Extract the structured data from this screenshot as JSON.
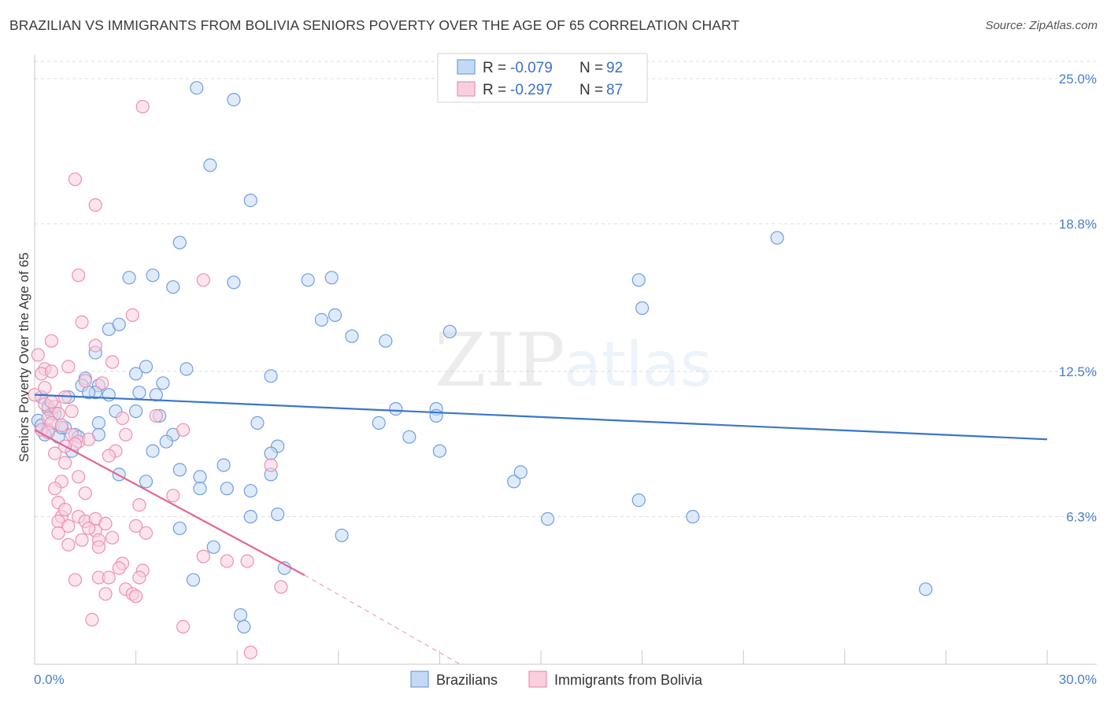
{
  "header": {
    "title": "BRAZILIAN VS IMMIGRANTS FROM BOLIVIA SENIORS POVERTY OVER THE AGE OF 65 CORRELATION CHART",
    "source": "Source: ZipAtlas.com"
  },
  "watermark": {
    "zip": "ZIP",
    "atlas": "atlas"
  },
  "chart_data": {
    "type": "scatter",
    "ylabel": "Seniors Poverty Over the Age of 65",
    "xlim": [
      0,
      30
    ],
    "ylim": [
      0,
      26
    ],
    "x_tick_labels": [
      "0.0%",
      "30.0%"
    ],
    "y_ticks": [
      {
        "value": 25.0,
        "label": "25.0%"
      },
      {
        "value": 18.8,
        "label": "18.8%"
      },
      {
        "value": 12.5,
        "label": "12.5%"
      },
      {
        "value": 6.3,
        "label": "6.3%"
      }
    ],
    "grid": true,
    "legend": {
      "placement": "top-center",
      "rows": [
        {
          "r_label": "R =",
          "r_value": "-0.079",
          "n_label": "N =",
          "n_value": "92"
        },
        {
          "r_label": "R =",
          "r_value": "-0.297",
          "n_label": "N =",
          "n_value": "87"
        }
      ]
    },
    "series": [
      {
        "name": "Brazilians",
        "color": "#6e9fe0",
        "fill": "#c5d9f5",
        "line_color": "#3a75cc",
        "trend": {
          "x": [
            0,
            30
          ],
          "y": [
            11.5,
            9.6
          ]
        },
        "points": [
          [
            4.8,
            24.6
          ],
          [
            5.9,
            24.1
          ],
          [
            5.2,
            21.3
          ],
          [
            6.4,
            19.8
          ],
          [
            4.3,
            18.0
          ],
          [
            22.0,
            18.2
          ],
          [
            3.5,
            16.6
          ],
          [
            2.8,
            16.5
          ],
          [
            4.1,
            16.1
          ],
          [
            5.9,
            16.3
          ],
          [
            8.1,
            16.4
          ],
          [
            8.8,
            16.5
          ],
          [
            17.9,
            16.4
          ],
          [
            18.0,
            15.2
          ],
          [
            8.5,
            14.7
          ],
          [
            8.9,
            14.9
          ],
          [
            2.2,
            14.3
          ],
          [
            2.5,
            14.5
          ],
          [
            9.4,
            14.0
          ],
          [
            10.4,
            13.8
          ],
          [
            12.3,
            14.2
          ],
          [
            1.8,
            13.3
          ],
          [
            3.3,
            12.7
          ],
          [
            3.0,
            12.4
          ],
          [
            4.5,
            12.6
          ],
          [
            7.0,
            12.3
          ],
          [
            1.5,
            12.2
          ],
          [
            1.4,
            11.9
          ],
          [
            1.9,
            11.9
          ],
          [
            1.8,
            11.6
          ],
          [
            2.2,
            11.5
          ],
          [
            3.1,
            11.6
          ],
          [
            3.8,
            12.0
          ],
          [
            3.6,
            11.5
          ],
          [
            1.0,
            11.4
          ],
          [
            0.2,
            11.4
          ],
          [
            0.4,
            11.0
          ],
          [
            0.5,
            10.7
          ],
          [
            0.6,
            10.7
          ],
          [
            2.4,
            10.8
          ],
          [
            3.0,
            10.8
          ],
          [
            3.7,
            10.6
          ],
          [
            10.7,
            10.9
          ],
          [
            11.9,
            10.9
          ],
          [
            11.9,
            10.6
          ],
          [
            10.2,
            10.3
          ],
          [
            1.9,
            10.3
          ],
          [
            0.1,
            10.4
          ],
          [
            0.2,
            10.2
          ],
          [
            0.4,
            10.0
          ],
          [
            0.9,
            10.1
          ],
          [
            1.2,
            9.8
          ],
          [
            0.7,
            9.7
          ],
          [
            1.3,
            9.7
          ],
          [
            1.9,
            9.8
          ],
          [
            0.3,
            9.8
          ],
          [
            4.1,
            9.8
          ],
          [
            6.6,
            10.3
          ],
          [
            11.1,
            9.7
          ],
          [
            3.9,
            9.5
          ],
          [
            7.2,
            9.3
          ],
          [
            1.1,
            9.1
          ],
          [
            3.5,
            9.1
          ],
          [
            7.0,
            9.0
          ],
          [
            12.0,
            9.1
          ],
          [
            5.6,
            8.5
          ],
          [
            4.3,
            8.3
          ],
          [
            2.5,
            8.1
          ],
          [
            4.9,
            8.0
          ],
          [
            7.0,
            8.1
          ],
          [
            3.3,
            7.8
          ],
          [
            14.2,
            7.8
          ],
          [
            14.4,
            8.2
          ],
          [
            4.9,
            7.5
          ],
          [
            5.7,
            7.5
          ],
          [
            6.4,
            7.4
          ],
          [
            17.9,
            7.0
          ],
          [
            6.4,
            6.3
          ],
          [
            7.2,
            6.4
          ],
          [
            15.2,
            6.2
          ],
          [
            19.5,
            6.3
          ],
          [
            4.3,
            5.8
          ],
          [
            9.1,
            5.5
          ],
          [
            5.3,
            5.0
          ],
          [
            7.4,
            4.1
          ],
          [
            4.7,
            3.6
          ],
          [
            6.1,
            2.1
          ],
          [
            6.2,
            1.6
          ],
          [
            26.4,
            3.2
          ],
          [
            0.4,
            10.9
          ],
          [
            1.6,
            11.6
          ],
          [
            0.8,
            10.1
          ]
        ]
      },
      {
        "name": "Immigrants from Bolivia",
        "color": "#ee8fb0",
        "fill": "#f9cfde",
        "line_color": "#e46592",
        "trend": {
          "x": [
            0,
            8
          ],
          "y": [
            10.0,
            3.8
          ]
        },
        "trend_dashed": {
          "x": [
            8,
            12.6
          ],
          "y": [
            3.8,
            0.0
          ]
        },
        "points": [
          [
            3.2,
            23.8
          ],
          [
            1.2,
            20.7
          ],
          [
            1.8,
            19.6
          ],
          [
            1.3,
            16.6
          ],
          [
            5.0,
            16.4
          ],
          [
            2.9,
            14.9
          ],
          [
            1.4,
            14.6
          ],
          [
            0.5,
            13.8
          ],
          [
            0.1,
            13.2
          ],
          [
            1.8,
            13.6
          ],
          [
            2.3,
            12.9
          ],
          [
            1.0,
            12.7
          ],
          [
            0.3,
            12.6
          ],
          [
            0.2,
            12.4
          ],
          [
            0.5,
            12.5
          ],
          [
            1.5,
            12.1
          ],
          [
            2.0,
            12.0
          ],
          [
            0.0,
            11.5
          ],
          [
            0.9,
            11.4
          ],
          [
            0.3,
            11.1
          ],
          [
            0.6,
            11.0
          ],
          [
            0.7,
            10.7
          ],
          [
            0.4,
            10.5
          ],
          [
            2.6,
            10.5
          ],
          [
            3.6,
            10.6
          ],
          [
            0.2,
            10.0
          ],
          [
            0.5,
            10.3
          ],
          [
            0.8,
            10.2
          ],
          [
            4.4,
            10.0
          ],
          [
            1.1,
            9.8
          ],
          [
            2.7,
            9.8
          ],
          [
            1.3,
            9.5
          ],
          [
            1.2,
            9.4
          ],
          [
            0.9,
            9.3
          ],
          [
            2.4,
            9.1
          ],
          [
            7.0,
            8.5
          ],
          [
            0.6,
            9.0
          ],
          [
            0.9,
            8.6
          ],
          [
            1.3,
            8.0
          ],
          [
            0.8,
            7.8
          ],
          [
            0.6,
            7.5
          ],
          [
            1.5,
            7.3
          ],
          [
            4.1,
            7.2
          ],
          [
            0.7,
            6.9
          ],
          [
            3.1,
            6.8
          ],
          [
            0.8,
            6.3
          ],
          [
            0.7,
            6.1
          ],
          [
            1.3,
            6.3
          ],
          [
            1.5,
            6.1
          ],
          [
            1.8,
            6.2
          ],
          [
            2.1,
            6.0
          ],
          [
            3.0,
            5.9
          ],
          [
            1.0,
            5.9
          ],
          [
            1.8,
            5.7
          ],
          [
            3.3,
            5.6
          ],
          [
            0.7,
            5.6
          ],
          [
            1.4,
            5.3
          ],
          [
            1.9,
            5.3
          ],
          [
            1.0,
            5.1
          ],
          [
            1.9,
            5.0
          ],
          [
            5.0,
            4.6
          ],
          [
            5.7,
            4.4
          ],
          [
            6.3,
            4.4
          ],
          [
            2.6,
            4.3
          ],
          [
            2.5,
            4.1
          ],
          [
            3.2,
            4.0
          ],
          [
            3.1,
            3.7
          ],
          [
            1.9,
            3.7
          ],
          [
            2.2,
            3.7
          ],
          [
            1.2,
            3.6
          ],
          [
            7.3,
            3.3
          ],
          [
            2.7,
            3.2
          ],
          [
            2.1,
            3.0
          ],
          [
            2.9,
            3.0
          ],
          [
            3.0,
            2.9
          ],
          [
            1.7,
            1.9
          ],
          [
            4.4,
            1.6
          ],
          [
            6.4,
            0.5
          ],
          [
            0.3,
            11.8
          ],
          [
            0.5,
            11.2
          ],
          [
            1.1,
            10.8
          ],
          [
            0.4,
            9.9
          ],
          [
            1.6,
            9.6
          ],
          [
            2.2,
            8.9
          ],
          [
            0.9,
            6.6
          ],
          [
            1.6,
            5.8
          ],
          [
            2.3,
            5.4
          ]
        ]
      }
    ]
  }
}
